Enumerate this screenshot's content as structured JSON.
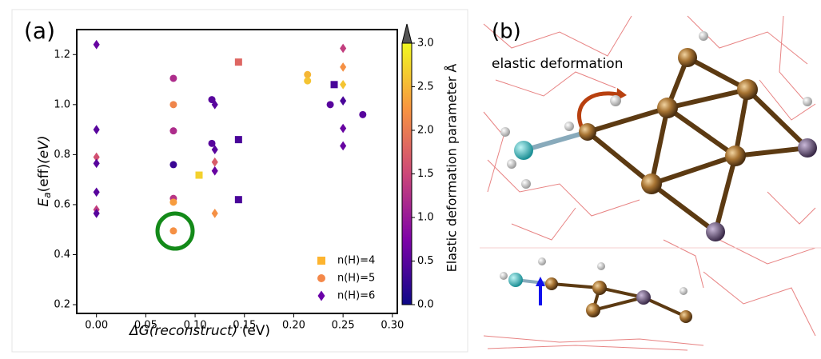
{
  "panel_a": {
    "label": "(a)"
  },
  "chart_data": {
    "type": "scatter",
    "x_label_math": "ΔG(reconstruct)",
    "x_label_unit": "(eV)",
    "y_label_symbol": "E",
    "y_label_subscript": "a",
    "y_label_rest": "(eff)",
    "y_label_unit": "(eV)",
    "colorbar_label": "Elastic deformation parameter Å",
    "colormap": "plasma",
    "xlim": [
      -0.02,
      0.305
    ],
    "ylim": [
      0.165,
      1.3
    ],
    "clim": [
      0,
      3.0
    ],
    "xticks": [
      {
        "value": 0,
        "label": "0.00"
      },
      0.05,
      {
        "value": 0.1,
        "label": "0.10"
      },
      0.15,
      {
        "value": 0.2,
        "label": "0.20"
      },
      0.25,
      {
        "value": 0.3,
        "label": "0.30"
      }
    ],
    "yticks": [
      0.2,
      0.4,
      0.6,
      0.8,
      {
        "value": 1,
        "label": "1.0"
      },
      1.2
    ],
    "cticks": [
      {
        "value": 0,
        "label": "0.0"
      },
      0.5,
      {
        "value": 1,
        "label": "1.0"
      },
      1.5,
      {
        "value": 2,
        "label": "2.0"
      },
      2.5,
      {
        "value": 3,
        "label": "3.0"
      }
    ],
    "legend": "lower right",
    "series": [
      {
        "name": "n(H)=4",
        "marker": "square",
        "color": "#fdb42f",
        "x": [
          0.104,
          0.144,
          0.144,
          0.144,
          0.241
        ],
        "values": [
          0.718,
          1.17,
          0.86,
          0.62,
          1.08
        ],
        "c": [
          2.7,
          1.8,
          0.4,
          0.4,
          0.4
        ]
      },
      {
        "name": "n(H)=5",
        "marker": "circle",
        "color": "#f48849",
        "x": [
          0.078,
          0.078,
          0.078,
          0.078,
          0.078,
          0.078,
          0.078,
          0.117,
          0.117,
          0.214,
          0.214,
          0.237,
          0.27
        ],
        "values": [
          1.105,
          1.0,
          0.895,
          0.76,
          0.625,
          0.61,
          0.495,
          1.02,
          0.845,
          1.12,
          1.095,
          1.0,
          0.96
        ],
        "c": [
          1.2,
          2.1,
          1.2,
          0.3,
          1.3,
          2.3,
          2.2,
          0.5,
          0.5,
          2.5,
          2.6,
          0.5,
          0.5
        ]
      },
      {
        "name": "n(H)=6",
        "marker": "diamond",
        "color": "#6a00a8",
        "x": [
          0,
          0,
          0,
          0,
          0,
          0,
          0,
          0.12,
          0.12,
          0.12,
          0.12,
          0.12,
          0.25,
          0.25,
          0.25,
          0.25,
          0.25,
          0.25
        ],
        "values": [
          1.24,
          0.9,
          0.79,
          0.765,
          0.65,
          0.58,
          0.565,
          1.0,
          0.82,
          0.77,
          0.735,
          0.565,
          1.225,
          1.15,
          1.08,
          1.015,
          0.905,
          0.835
        ],
        "c": [
          0.6,
          0.5,
          1.6,
          0.5,
          0.5,
          1.4,
          0.5,
          0.5,
          0.5,
          1.7,
          0.6,
          2.2,
          1.4,
          2.2,
          2.6,
          0.4,
          0.6,
          0.6
        ]
      }
    ]
  },
  "panel_b": {
    "label": "(b)",
    "annotation": "elastic deformation"
  }
}
